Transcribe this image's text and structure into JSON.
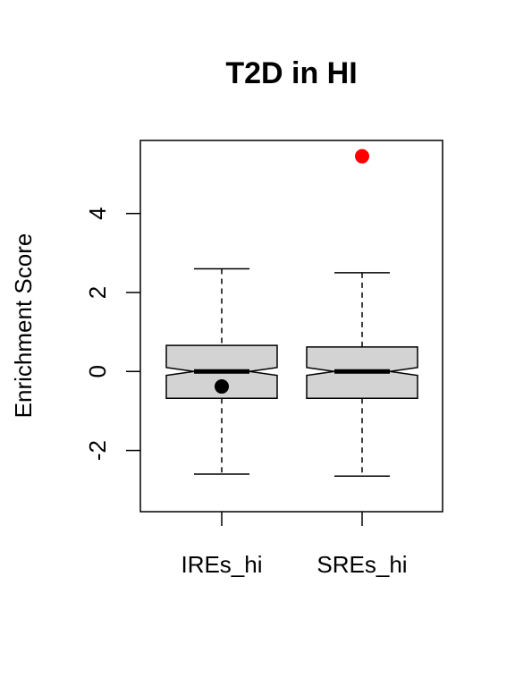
{
  "chart_data": {
    "type": "boxplot",
    "title": "T2D in HI",
    "xlabel": "",
    "ylabel": "Enrichment Score",
    "ylim": [
      -3.55,
      5.85
    ],
    "yticks": [
      -2,
      0,
      2,
      4
    ],
    "ytick_labels": [
      "-2",
      "0",
      "2",
      "4"
    ],
    "notched": true,
    "categories": [
      "IREs_hi",
      "SREs_hi"
    ],
    "box_fill": "#d3d3d3",
    "series": [
      {
        "whisker_low": -2.6,
        "q1": -0.68,
        "median": 0.0,
        "q3": 0.66,
        "whisker_high": 2.6,
        "notch_low": -0.1,
        "notch_high": 0.1,
        "highlight_point": {
          "value": -0.38,
          "color": "#000000"
        }
      },
      {
        "whisker_low": -2.65,
        "q1": -0.68,
        "median": 0.0,
        "q3": 0.62,
        "whisker_high": 2.5,
        "notch_low": -0.1,
        "notch_high": 0.1,
        "highlight_point": {
          "value": 5.45,
          "color": "#ff0000"
        }
      }
    ]
  }
}
